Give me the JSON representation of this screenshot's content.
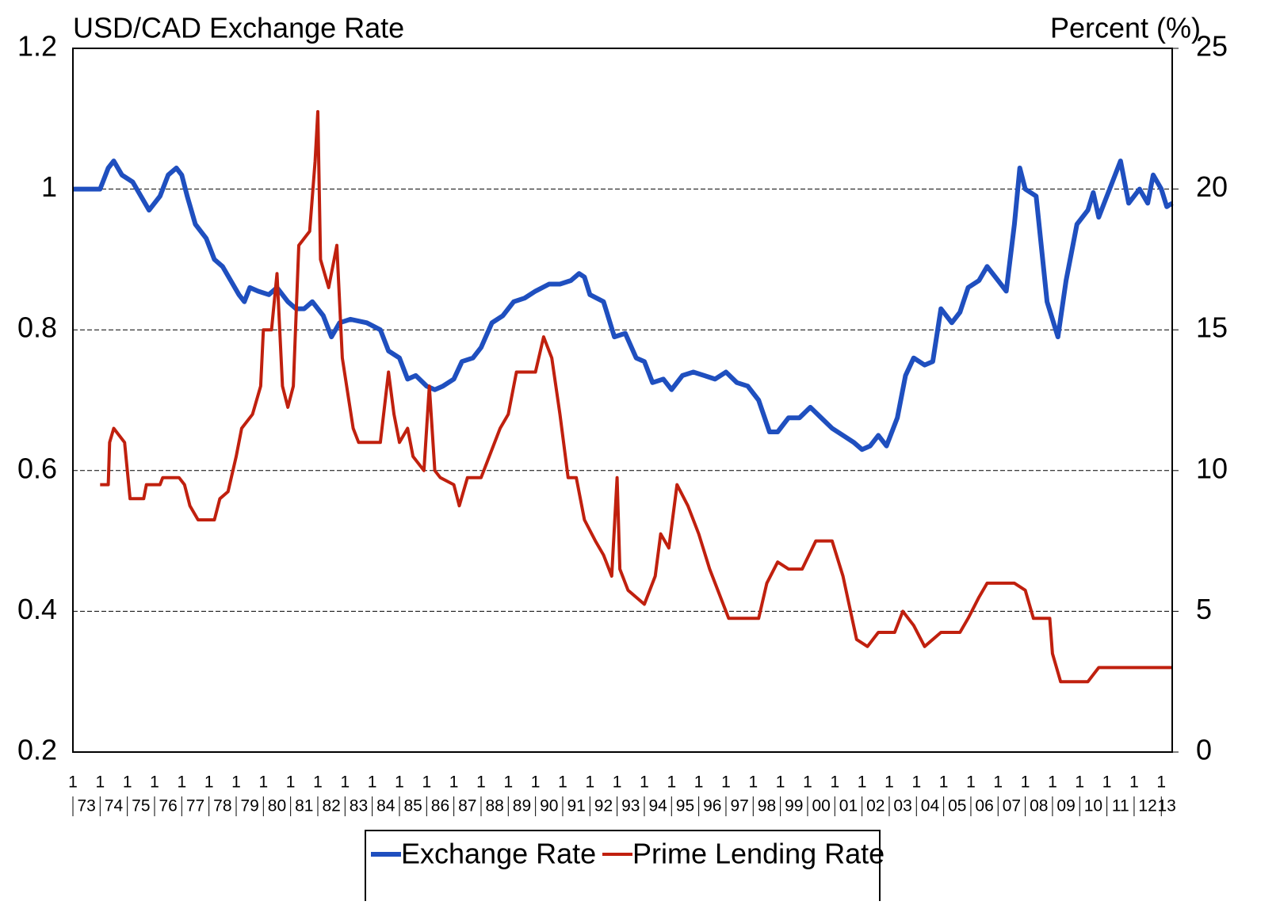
{
  "chart_data": {
    "type": "line",
    "y_axis_title": "USD/CAD Exchange Rate",
    "y2_axis_title": "Percent (%)",
    "xlim": [
      1973,
      2013.4
    ],
    "xticks": [
      {
        "value": 1973,
        "label": "1"
      },
      {
        "value": 1974,
        "label": "1"
      },
      {
        "value": 1975,
        "label": "1"
      },
      {
        "value": 1976,
        "label": "1"
      },
      {
        "value": 1977,
        "label": "1"
      },
      {
        "value": 1978,
        "label": "1"
      },
      {
        "value": 1979,
        "label": "1"
      },
      {
        "value": 1980,
        "label": "1"
      },
      {
        "value": 1981,
        "label": "1"
      },
      {
        "value": 1982,
        "label": "1"
      },
      {
        "value": 1983,
        "label": "1"
      },
      {
        "value": 1984,
        "label": "1"
      },
      {
        "value": 1985,
        "label": "1"
      },
      {
        "value": 1986,
        "label": "1"
      },
      {
        "value": 1987,
        "label": "1"
      },
      {
        "value": 1988,
        "label": "1"
      },
      {
        "value": 1989,
        "label": "1"
      },
      {
        "value": 1990,
        "label": "1"
      },
      {
        "value": 1991,
        "label": "1"
      },
      {
        "value": 1992,
        "label": "1"
      },
      {
        "value": 1993,
        "label": "1"
      },
      {
        "value": 1994,
        "label": "1"
      },
      {
        "value": 1995,
        "label": "1"
      },
      {
        "value": 1996,
        "label": "1"
      },
      {
        "value": 1997,
        "label": "1"
      },
      {
        "value": 1998,
        "label": "1"
      },
      {
        "value": 1999,
        "label": "1"
      },
      {
        "value": 2000,
        "label": "1"
      },
      {
        "value": 2001,
        "label": "1"
      },
      {
        "value": 2002,
        "label": "1"
      },
      {
        "value": 2003,
        "label": "1"
      },
      {
        "value": 2004,
        "label": "1"
      },
      {
        "value": 2005,
        "label": "1"
      },
      {
        "value": 2006,
        "label": "1"
      },
      {
        "value": 2007,
        "label": "1"
      },
      {
        "value": 2008,
        "label": "1"
      },
      {
        "value": 2009,
        "label": "1"
      },
      {
        "value": 2010,
        "label": "1"
      },
      {
        "value": 2011,
        "label": "1"
      },
      {
        "value": 2012,
        "label": "1"
      },
      {
        "value": 2013,
        "label": "1"
      }
    ],
    "year_labels": [
      "73",
      "74",
      "75",
      "76",
      "77",
      "78",
      "79",
      "80",
      "81",
      "82",
      "83",
      "84",
      "85",
      "86",
      "87",
      "88",
      "89",
      "90",
      "91",
      "92",
      "93",
      "94",
      "95",
      "96",
      "97",
      "98",
      "99",
      "00",
      "01",
      "02",
      "03",
      "04",
      "05",
      "06",
      "07",
      "08",
      "09",
      "10",
      "11",
      "12",
      "13"
    ],
    "ylim": [
      0.2,
      1.2
    ],
    "yticks": [
      0.2,
      0.4,
      0.6,
      0.8,
      1,
      1.2
    ],
    "y2lim": [
      0,
      25
    ],
    "y2ticks": [
      0,
      5,
      10,
      15,
      20,
      25
    ],
    "grid": true,
    "legend": "bottom",
    "series": [
      {
        "name": "Exchange Rate",
        "color": "#1f4fbf",
        "axis": "y",
        "x": [
          1973.0,
          1973.5,
          1974.0,
          1974.3,
          1974.5,
          1974.8,
          1975.2,
          1975.5,
          1975.8,
          1976.2,
          1976.5,
          1976.8,
          1977.0,
          1977.2,
          1977.5,
          1977.9,
          1978.2,
          1978.5,
          1978.8,
          1979.1,
          1979.3,
          1979.5,
          1979.8,
          1980.2,
          1980.5,
          1980.9,
          1981.2,
          1981.5,
          1981.8,
          1982.2,
          1982.5,
          1982.8,
          1983.2,
          1983.8,
          1984.3,
          1984.6,
          1985.0,
          1985.3,
          1985.6,
          1986.0,
          1986.3,
          1986.6,
          1987.0,
          1987.3,
          1987.7,
          1988.0,
          1988.4,
          1988.8,
          1989.2,
          1989.6,
          1990.0,
          1990.5,
          1990.9,
          1991.3,
          1991.6,
          1991.8,
          1992.0,
          1992.5,
          1992.9,
          1993.3,
          1993.7,
          1994.0,
          1994.3,
          1994.7,
          1995.0,
          1995.4,
          1995.8,
          1996.2,
          1996.6,
          1997.0,
          1997.4,
          1997.8,
          1998.2,
          1998.6,
          1998.9,
          1999.3,
          1999.7,
          2000.1,
          2000.5,
          2000.9,
          2001.3,
          2001.7,
          2002.0,
          2002.3,
          2002.6,
          2002.9,
          2003.3,
          2003.6,
          2003.9,
          2004.3,
          2004.6,
          2004.9,
          2005.3,
          2005.6,
          2005.9,
          2006.3,
          2006.6,
          2007.0,
          2007.3,
          2007.6,
          2007.8,
          2008.0,
          2008.4,
          2008.8,
          2009.2,
          2009.5,
          2009.9,
          2010.3,
          2010.5,
          2010.7,
          2011.2,
          2011.5,
          2011.8,
          2012.2,
          2012.5,
          2012.7,
          2013.0,
          2013.2,
          2013.4
        ],
        "values": [
          1.0,
          1.0,
          1.0,
          1.03,
          1.04,
          1.02,
          1.01,
          0.99,
          0.97,
          0.99,
          1.02,
          1.03,
          1.02,
          0.99,
          0.95,
          0.93,
          0.9,
          0.89,
          0.87,
          0.85,
          0.84,
          0.86,
          0.855,
          0.85,
          0.86,
          0.84,
          0.83,
          0.83,
          0.84,
          0.82,
          0.79,
          0.81,
          0.815,
          0.81,
          0.8,
          0.77,
          0.76,
          0.73,
          0.735,
          0.72,
          0.715,
          0.72,
          0.73,
          0.755,
          0.76,
          0.775,
          0.81,
          0.82,
          0.84,
          0.845,
          0.855,
          0.865,
          0.865,
          0.87,
          0.88,
          0.875,
          0.85,
          0.84,
          0.79,
          0.795,
          0.76,
          0.755,
          0.725,
          0.73,
          0.715,
          0.735,
          0.74,
          0.735,
          0.73,
          0.74,
          0.725,
          0.72,
          0.7,
          0.655,
          0.655,
          0.675,
          0.675,
          0.69,
          0.675,
          0.66,
          0.65,
          0.64,
          0.63,
          0.635,
          0.65,
          0.635,
          0.675,
          0.735,
          0.76,
          0.75,
          0.755,
          0.83,
          0.81,
          0.825,
          0.86,
          0.87,
          0.89,
          0.87,
          0.855,
          0.95,
          1.03,
          1.0,
          0.99,
          0.84,
          0.79,
          0.87,
          0.95,
          0.97,
          0.995,
          0.96,
          1.01,
          1.04,
          0.98,
          1.0,
          0.98,
          1.02,
          1.0,
          0.975,
          0.98
        ]
      },
      {
        "name": "Prime Lending Rate",
        "color": "#c0200e",
        "axis": "y2",
        "x": [
          1974.0,
          1974.3,
          1974.35,
          1974.5,
          1974.9,
          1975.1,
          1975.6,
          1975.7,
          1976.2,
          1976.3,
          1976.9,
          1977.1,
          1977.3,
          1977.6,
          1978.2,
          1978.4,
          1978.7,
          1979.0,
          1979.2,
          1979.6,
          1979.9,
          1980.0,
          1980.3,
          1980.5,
          1980.7,
          1980.9,
          1981.1,
          1981.3,
          1981.7,
          1981.9,
          1982.0,
          1982.1,
          1982.4,
          1982.7,
          1982.9,
          1983.3,
          1983.5,
          1984.3,
          1984.6,
          1984.8,
          1985.0,
          1985.3,
          1985.5,
          1985.9,
          1986.1,
          1986.3,
          1986.5,
          1987.0,
          1987.2,
          1987.5,
          1988.0,
          1988.3,
          1988.7,
          1989.0,
          1989.3,
          1990.0,
          1990.3,
          1990.6,
          1990.9,
          1991.2,
          1991.5,
          1991.8,
          1992.2,
          1992.5,
          1992.8,
          1993.0,
          1993.1,
          1993.4,
          1994.0,
          1994.4,
          1994.6,
          1994.9,
          1995.2,
          1995.6,
          1996.0,
          1996.4,
          1996.8,
          1997.1,
          1998.2,
          1998.5,
          1998.9,
          1999.3,
          1999.8,
          2000.3,
          2000.9,
          2001.3,
          2001.8,
          2002.2,
          2002.6,
          2003.2,
          2003.5,
          2003.9,
          2004.3,
          2004.9,
          2005.6,
          2005.9,
          2006.3,
          2006.6,
          2007.6,
          2008.0,
          2008.3,
          2008.9,
          2009.0,
          2009.3,
          2010.3,
          2010.5,
          2010.7,
          2013.4
        ],
        "values": [
          9.5,
          9.5,
          11.0,
          11.5,
          11.0,
          9.0,
          9.0,
          9.5,
          9.5,
          9.75,
          9.75,
          9.5,
          8.75,
          8.25,
          8.25,
          9.0,
          9.25,
          10.5,
          11.5,
          12.0,
          13.0,
          15.0,
          15.0,
          17.0,
          13.0,
          12.25,
          13.0,
          18.0,
          18.5,
          21.0,
          22.75,
          17.5,
          16.5,
          18.0,
          14.0,
          11.5,
          11.0,
          11.0,
          13.5,
          12.0,
          11.0,
          11.5,
          10.5,
          10.0,
          13.0,
          10.0,
          9.75,
          9.5,
          8.75,
          9.75,
          9.75,
          10.5,
          11.5,
          12.0,
          13.5,
          13.5,
          14.75,
          14.0,
          12.0,
          9.75,
          9.75,
          8.25,
          7.5,
          7.0,
          6.25,
          9.75,
          6.5,
          5.75,
          5.25,
          6.25,
          7.75,
          7.25,
          9.5,
          8.75,
          7.75,
          6.5,
          5.5,
          4.75,
          4.75,
          6.0,
          6.75,
          6.5,
          6.5,
          7.5,
          7.5,
          6.25,
          4.0,
          3.75,
          4.25,
          4.25,
          5.0,
          4.5,
          3.75,
          4.25,
          4.25,
          4.75,
          5.5,
          6.0,
          6.0,
          5.75,
          4.75,
          4.75,
          3.5,
          2.5,
          2.5,
          2.75,
          3.0,
          3.0
        ]
      }
    ]
  }
}
